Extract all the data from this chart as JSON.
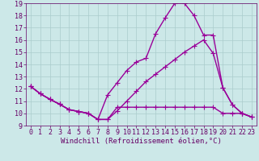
{
  "xlabel": "Windchill (Refroidissement éolien,°C)",
  "bg_color": "#cce8e8",
  "line_color": "#990099",
  "grid_color": "#aacccc",
  "xlim": [
    -0.5,
    23.5
  ],
  "ylim": [
    9,
    19
  ],
  "xticks": [
    0,
    1,
    2,
    3,
    4,
    5,
    6,
    7,
    8,
    9,
    10,
    11,
    12,
    13,
    14,
    15,
    16,
    17,
    18,
    19,
    20,
    21,
    22,
    23
  ],
  "yticks": [
    9,
    10,
    11,
    12,
    13,
    14,
    15,
    16,
    17,
    18,
    19
  ],
  "line1_x": [
    0,
    1,
    2,
    3,
    4,
    5,
    6,
    7,
    8,
    9,
    10,
    11,
    12,
    13,
    14,
    15,
    16,
    17,
    18,
    19,
    20,
    21,
    22,
    23
  ],
  "line1_y": [
    12.2,
    11.6,
    11.15,
    10.75,
    10.3,
    10.15,
    10.0,
    9.5,
    9.5,
    10.5,
    10.5,
    10.5,
    10.5,
    10.5,
    10.5,
    10.5,
    10.5,
    10.5,
    10.5,
    10.5,
    10.0,
    10.0,
    10.0,
    9.7
  ],
  "line2_x": [
    0,
    1,
    2,
    3,
    4,
    5,
    6,
    7,
    8,
    9,
    10,
    11,
    12,
    13,
    14,
    15,
    16,
    17,
    18,
    19,
    20,
    21,
    22,
    23
  ],
  "line2_y": [
    12.2,
    11.6,
    11.15,
    10.75,
    10.3,
    10.15,
    10.0,
    9.5,
    9.5,
    10.2,
    11.0,
    11.8,
    12.6,
    13.2,
    13.8,
    14.4,
    15.0,
    15.5,
    16.0,
    14.9,
    12.1,
    10.7,
    10.0,
    9.7
  ],
  "line3_x": [
    0,
    1,
    2,
    3,
    4,
    5,
    6,
    7,
    8,
    9,
    10,
    11,
    12,
    13,
    14,
    15,
    16,
    17,
    18,
    19,
    20,
    21,
    22,
    23
  ],
  "line3_y": [
    12.2,
    11.6,
    11.15,
    10.75,
    10.3,
    10.15,
    10.0,
    9.5,
    11.5,
    12.5,
    13.5,
    14.2,
    14.5,
    16.5,
    17.8,
    19.0,
    19.0,
    18.0,
    16.4,
    16.4,
    12.1,
    10.7,
    10.0,
    9.7
  ],
  "marker_size": 4,
  "line_width": 1.0,
  "xlabel_fontsize": 6.5,
  "tick_fontsize": 6.0,
  "tick_label_color": "#660066"
}
